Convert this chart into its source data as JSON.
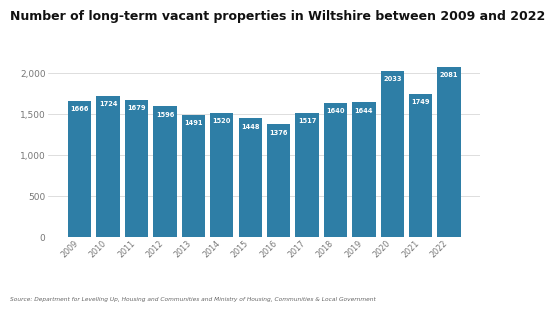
{
  "title": "Number of long-term vacant properties in Wiltshire between 2009 and 2022",
  "years": [
    "2009",
    "2010",
    "2011",
    "2012",
    "2013",
    "2014",
    "2015",
    "2016",
    "2017",
    "2018",
    "2019",
    "2020",
    "2021",
    "2022"
  ],
  "values": [
    1666,
    1724,
    1679,
    1596,
    1491,
    1520,
    1448,
    1376,
    1517,
    1640,
    1644,
    2033,
    1749,
    2081
  ],
  "bar_color": "#2e7ea6",
  "background_color": "#ffffff",
  "ylim": [
    0,
    2150
  ],
  "yticks": [
    0,
    500,
    1000,
    1500,
    2000
  ],
  "label_color": "#ffffff",
  "label_fontsize": 4.8,
  "title_fontsize": 9.0,
  "source_text": "Source: Department for Levelling Up, Housing and Communities and Ministry of Housing, Communities & Local Government",
  "grid_color": "#d0d0d0",
  "tick_color": "#777777",
  "xtick_fontsize": 5.8,
  "ytick_fontsize": 6.5
}
